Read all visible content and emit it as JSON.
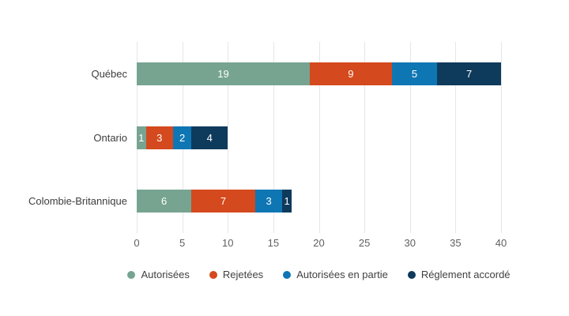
{
  "chart_data": {
    "type": "bar",
    "orientation": "horizontal",
    "stacked": true,
    "title": "",
    "xlabel": "",
    "ylabel": "",
    "categories": [
      "Québec",
      "Ontario",
      "Colombie-Britannique"
    ],
    "series": [
      {
        "name": "Autorisées",
        "color": "#76a490",
        "values": [
          19,
          1,
          6
        ]
      },
      {
        "name": "Rejetées",
        "color": "#d4491d",
        "values": [
          9,
          3,
          7
        ]
      },
      {
        "name": "Autorisées en partie",
        "color": "#0f76b4",
        "values": [
          5,
          2,
          3
        ]
      },
      {
        "name": "Réglement accordé",
        "color": "#0e3a5c",
        "values": [
          7,
          4,
          1
        ]
      }
    ],
    "totals": [
      40,
      10,
      17
    ],
    "xlim": [
      0,
      40
    ],
    "xticks": [
      0,
      5,
      10,
      15,
      20,
      25,
      30,
      35,
      40
    ],
    "grid": true,
    "gridline_color": "#e6e6e6",
    "bar_label_color": "#ffffff",
    "tick_label_color": "#5f5f5f",
    "category_label_color": "#3d3d3d",
    "legend_position": "bottom"
  }
}
